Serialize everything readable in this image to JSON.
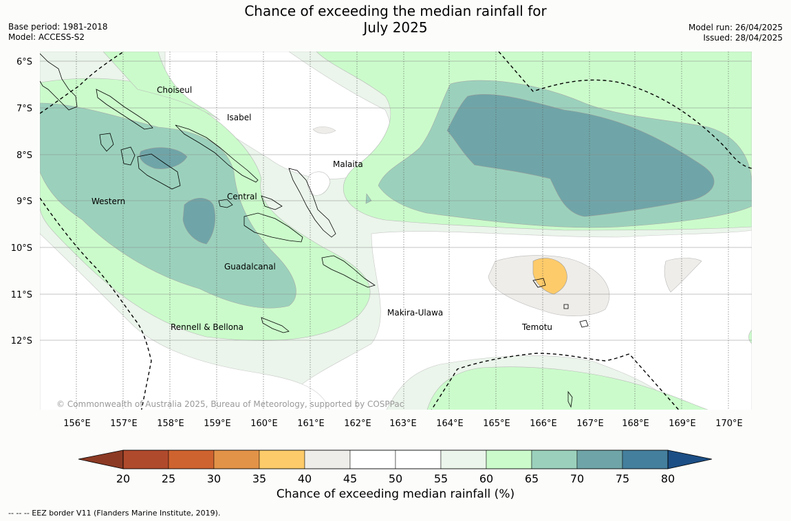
{
  "title_line1": "Chance of exceeding the median rainfall for",
  "title_line2": "July 2025",
  "meta_left": {
    "base_period": "Base period: 1981-2018",
    "model": "Model: ACCESS-S2"
  },
  "meta_right": {
    "model_run": "Model run: 26/04/2025",
    "issued": "Issued: 28/04/2025"
  },
  "copyright": "© Commonwealth of Australia 2025, Bureau of Meteorology, supported by COSPPac",
  "provinces": [
    "Choiseul",
    "Isabel",
    "Malaita",
    "Western",
    "Central",
    "Guadalcanal",
    "Makira-Ulawa",
    "Rennell & Bellona",
    "Temotu"
  ],
  "lat_ticks": [
    "6°S",
    "7°S",
    "8°S",
    "9°S",
    "10°S",
    "11°S",
    "12°S"
  ],
  "lon_ticks": [
    "156°E",
    "157°E",
    "158°E",
    "159°E",
    "160°E",
    "161°E",
    "162°E",
    "163°E",
    "164°E",
    "165°E",
    "166°E",
    "167°E",
    "168°E",
    "169°E",
    "170°E"
  ],
  "colorbar": {
    "labels": [
      "20",
      "25",
      "30",
      "35",
      "40",
      "45",
      "50",
      "55",
      "60",
      "65",
      "70",
      "75",
      "80"
    ],
    "colors": [
      "#b04a2c",
      "#cf632f",
      "#e39348",
      "#fecb6a",
      "#efede9",
      "#ffffff",
      "#ffffff",
      "#ebf5eb",
      "#cbfbcb",
      "#9bd1bc",
      "#6fa5a8",
      "#447f9e"
    ],
    "under_color": "#8c3a24",
    "over_color": "#1c4f85",
    "title": "Chance of exceeding median rainfall (%)"
  },
  "footnote": "--  --  -- EEZ border V11 (Flanders Marine Institute, 2019)."
}
